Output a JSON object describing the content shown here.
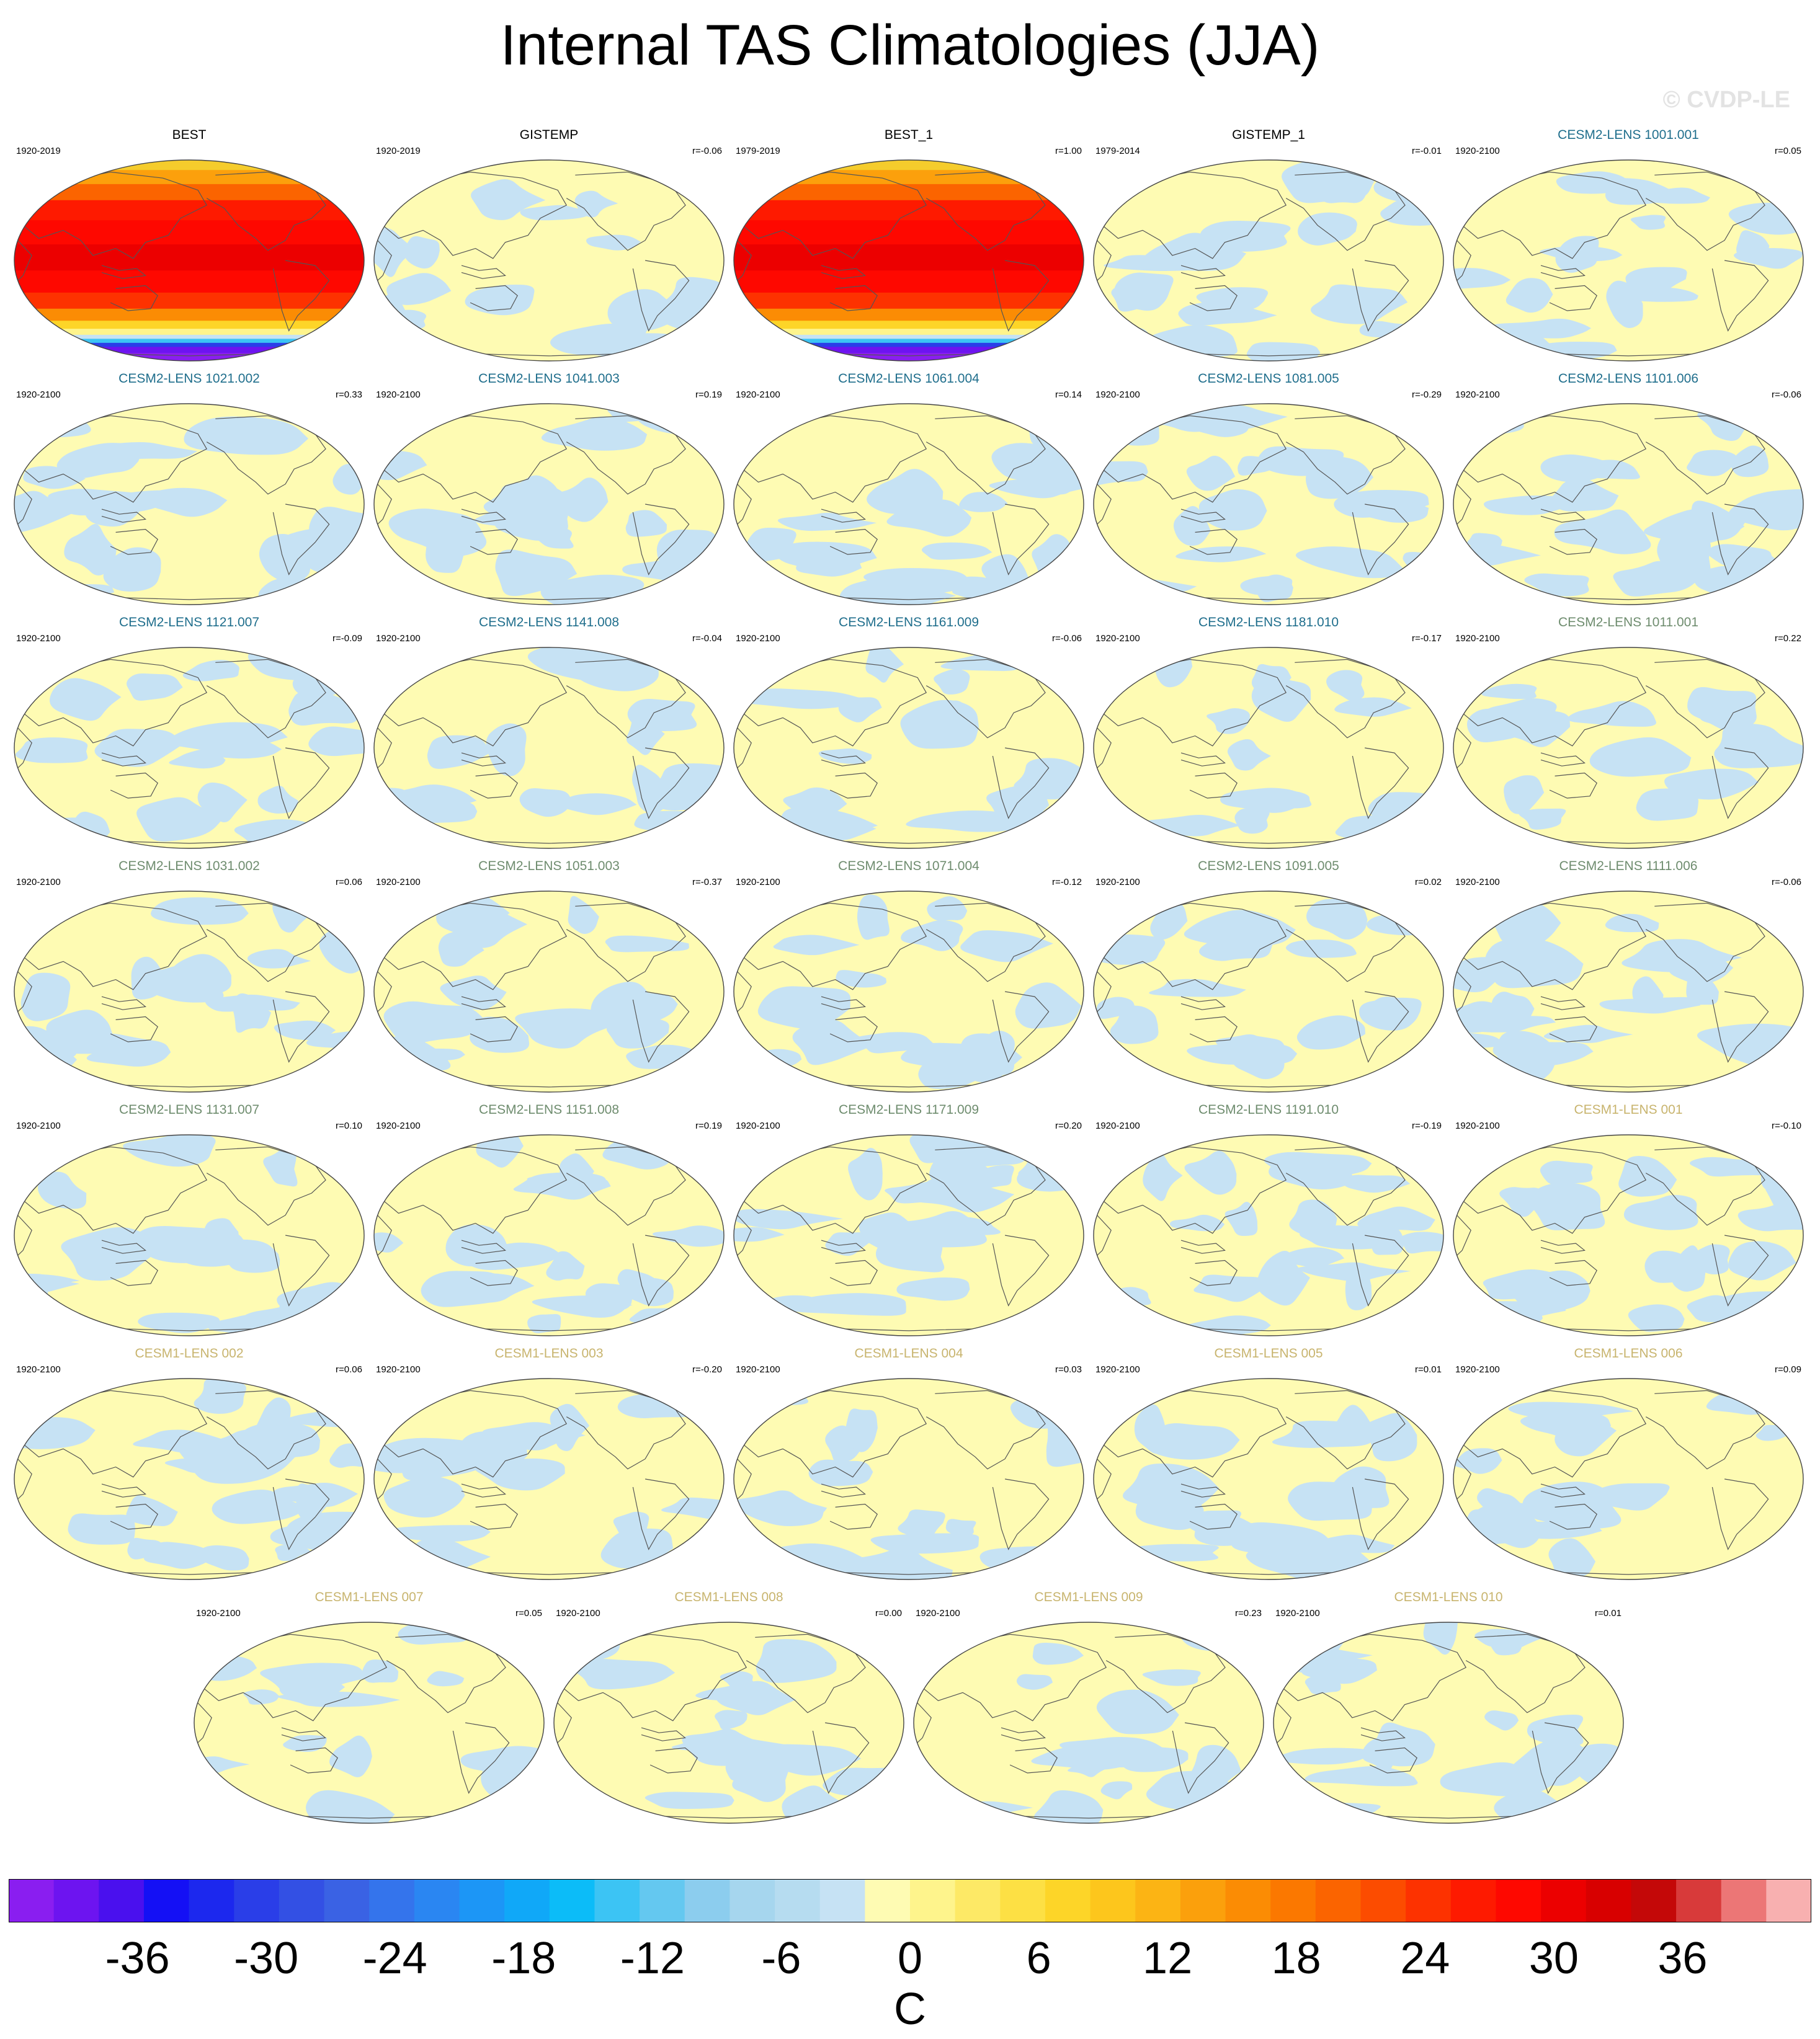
{
  "title": "Internal TAS Climatologies (JJA)",
  "watermark": "© CVDP-LE",
  "colors": {
    "best_title": "#000000",
    "cesm2_a": "#1f6e8c",
    "cesm2_b": "#6e8c6e",
    "cesm1": "#c8b46e",
    "land_outline": "#555555",
    "near_zero_cool": "#c6e2f4",
    "near_zero_warm": "#fefbb3"
  },
  "chart_data": {
    "type": "heatmap",
    "projection": "robinson",
    "panels": [
      {
        "title": "BEST",
        "years": "1920-2019",
        "corr": "",
        "group": "obs",
        "style": "full"
      },
      {
        "title": "GISTEMP",
        "years": "1920-2019",
        "corr": "r=-0.06",
        "group": "obs",
        "style": "anom"
      },
      {
        "title": "BEST_1",
        "years": "1979-2019",
        "corr": "r=1.00",
        "group": "obs",
        "style": "full"
      },
      {
        "title": "GISTEMP_1",
        "years": "1979-2014",
        "corr": "r=-0.01",
        "group": "obs",
        "style": "anom"
      },
      {
        "title": "CESM2-LENS 1001.001",
        "years": "1920-2100",
        "corr": "r=0.05",
        "group": "cesm2a",
        "style": "anom"
      },
      {
        "title": "CESM2-LENS 1021.002",
        "years": "1920-2100",
        "corr": "r=0.33",
        "group": "cesm2a",
        "style": "anom"
      },
      {
        "title": "CESM2-LENS 1041.003",
        "years": "1920-2100",
        "corr": "r=0.19",
        "group": "cesm2a",
        "style": "anom"
      },
      {
        "title": "CESM2-LENS 1061.004",
        "years": "1920-2100",
        "corr": "r=0.14",
        "group": "cesm2a",
        "style": "anom"
      },
      {
        "title": "CESM2-LENS 1081.005",
        "years": "1920-2100",
        "corr": "r=-0.29",
        "group": "cesm2a",
        "style": "anom"
      },
      {
        "title": "CESM2-LENS 1101.006",
        "years": "1920-2100",
        "corr": "r=-0.06",
        "group": "cesm2a",
        "style": "anom"
      },
      {
        "title": "CESM2-LENS 1121.007",
        "years": "1920-2100",
        "corr": "r=-0.09",
        "group": "cesm2a",
        "style": "anom"
      },
      {
        "title": "CESM2-LENS 1141.008",
        "years": "1920-2100",
        "corr": "r=-0.04",
        "group": "cesm2a",
        "style": "anom"
      },
      {
        "title": "CESM2-LENS 1161.009",
        "years": "1920-2100",
        "corr": "r=-0.06",
        "group": "cesm2a",
        "style": "anom"
      },
      {
        "title": "CESM2-LENS 1181.010",
        "years": "1920-2100",
        "corr": "r=-0.17",
        "group": "cesm2a",
        "style": "anom"
      },
      {
        "title": "CESM2-LENS 1011.001",
        "years": "1920-2100",
        "corr": "r=0.22",
        "group": "cesm2b",
        "style": "anom"
      },
      {
        "title": "CESM2-LENS 1031.002",
        "years": "1920-2100",
        "corr": "r=0.06",
        "group": "cesm2b",
        "style": "anom"
      },
      {
        "title": "CESM2-LENS 1051.003",
        "years": "1920-2100",
        "corr": "r=-0.37",
        "group": "cesm2b",
        "style": "anom"
      },
      {
        "title": "CESM2-LENS 1071.004",
        "years": "1920-2100",
        "corr": "r=-0.12",
        "group": "cesm2b",
        "style": "anom"
      },
      {
        "title": "CESM2-LENS 1091.005",
        "years": "1920-2100",
        "corr": "r=0.02",
        "group": "cesm2b",
        "style": "anom"
      },
      {
        "title": "CESM2-LENS 1111.006",
        "years": "1920-2100",
        "corr": "r=-0.06",
        "group": "cesm2b",
        "style": "anom"
      },
      {
        "title": "CESM2-LENS 1131.007",
        "years": "1920-2100",
        "corr": "r=0.10",
        "group": "cesm2b",
        "style": "anom"
      },
      {
        "title": "CESM2-LENS 1151.008",
        "years": "1920-2100",
        "corr": "r=0.19",
        "group": "cesm2b",
        "style": "anom"
      },
      {
        "title": "CESM2-LENS 1171.009",
        "years": "1920-2100",
        "corr": "r=0.20",
        "group": "cesm2b",
        "style": "anom"
      },
      {
        "title": "CESM2-LENS 1191.010",
        "years": "1920-2100",
        "corr": "r=-0.19",
        "group": "cesm2b",
        "style": "anom"
      },
      {
        "title": "CESM1-LENS 001",
        "years": "1920-2100",
        "corr": "r=-0.10",
        "group": "cesm1",
        "style": "anom"
      },
      {
        "title": "CESM1-LENS 002",
        "years": "1920-2100",
        "corr": "r=0.06",
        "group": "cesm1",
        "style": "anom"
      },
      {
        "title": "CESM1-LENS 003",
        "years": "1920-2100",
        "corr": "r=-0.20",
        "group": "cesm1",
        "style": "anom"
      },
      {
        "title": "CESM1-LENS 004",
        "years": "1920-2100",
        "corr": "r=0.03",
        "group": "cesm1",
        "style": "anom"
      },
      {
        "title": "CESM1-LENS 005",
        "years": "1920-2100",
        "corr": "r=0.01",
        "group": "cesm1",
        "style": "anom"
      },
      {
        "title": "CESM1-LENS 006",
        "years": "1920-2100",
        "corr": "r=0.09",
        "group": "cesm1",
        "style": "anom"
      },
      {
        "title": "CESM1-LENS 007",
        "years": "1920-2100",
        "corr": "r=0.05",
        "group": "cesm1",
        "style": "anom"
      },
      {
        "title": "CESM1-LENS 008",
        "years": "1920-2100",
        "corr": "r=0.00",
        "group": "cesm1",
        "style": "anom"
      },
      {
        "title": "CESM1-LENS 009",
        "years": "1920-2100",
        "corr": "r=0.23",
        "group": "cesm1",
        "style": "anom"
      },
      {
        "title": "CESM1-LENS 010",
        "years": "1920-2100",
        "corr": "r=0.01",
        "group": "cesm1",
        "style": "anom"
      }
    ],
    "colorbar": {
      "min": -42,
      "max": 42,
      "step": 2,
      "unit": "C",
      "tick_labels": [
        "-36",
        "-30",
        "-24",
        "-18",
        "-12",
        "-6",
        "0",
        "6",
        "12",
        "18",
        "24",
        "30",
        "36"
      ],
      "tick_values": [
        -36,
        -30,
        -24,
        -18,
        -12,
        -6,
        0,
        6,
        12,
        18,
        24,
        30,
        36
      ],
      "colors": [
        "#8a1ef0",
        "#6d14f0",
        "#4a10ee",
        "#1410f5",
        "#1c28ee",
        "#2a3ee8",
        "#3350e4",
        "#3a62e4",
        "#3474ec",
        "#2a86f2",
        "#1c96f6",
        "#10a8f8",
        "#0cbcf8",
        "#3cc4f4",
        "#64c8f0",
        "#8ccdee",
        "#a6d6ee",
        "#b6dcf0",
        "#c6e2f4",
        "#fefbb3",
        "#fef48c",
        "#fde966",
        "#fde044",
        "#fdd528",
        "#fdc61c",
        "#fcb414",
        "#fba00c",
        "#fb8c04",
        "#fb7800",
        "#fb6400",
        "#fc4c00",
        "#fd3200",
        "#fe1a00",
        "#fe0800",
        "#ec0000",
        "#d80000",
        "#c40808",
        "#d83a3a",
        "#ec7676",
        "#f8b0b0"
      ]
    }
  }
}
